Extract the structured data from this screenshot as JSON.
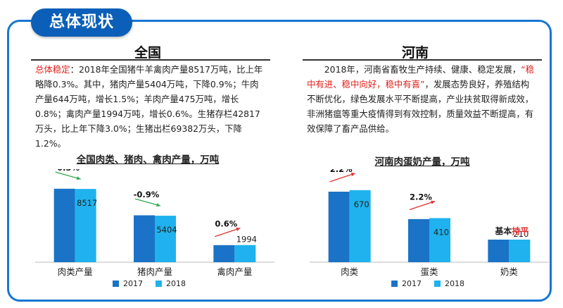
{
  "header": {
    "title": "总体现状"
  },
  "left": {
    "heading": "全国",
    "para_lead": "总体稳定",
    "para_rest": "：2018年全国猪牛羊禽肉产量8517万吨，比上年略降0.3%。其中，猪肉产量5404万吨，下降0.9%；牛肉产量644万吨，增长1.5%；羊肉产量475万吨，增长0.8%；禽肉产量1994万吨，增长0.6%。生猪存栏42817万头，比上年下降3.0%；生猪出栏69382万头，下降1.2%。"
  },
  "right": {
    "heading": "河南",
    "para_a": "2018年，河南省畜牧生产持续、健康、稳定发展，",
    "para_red": "“稳中有进、稳中向好，稳中有喜”",
    "para_b": "，发展态势良好，养殖结构不断优化，绿色发展水平不断提高，产业扶贫取得新成效，非洲猪瘟等重大疫情得到有效控制，质量效益不断提高，有效保障了畜产品供给。"
  },
  "colors": {
    "s2017": "#1a73c6",
    "s2018": "#1fb2ee",
    "arrow_green": "#2fa84f",
    "arrow_red": "#e23030",
    "frame": "#1677d2"
  },
  "chart_data": [
    {
      "type": "bar",
      "title": "全国肉类、猪肉、禽肉产量，万吨",
      "categories": [
        "肉类产量",
        "猪肉产量",
        "禽肉产量"
      ],
      "series": [
        {
          "name": "2017",
          "values": [
            8542,
            5452,
            1982
          ]
        },
        {
          "name": "2018",
          "values": [
            8517,
            5404,
            1994
          ]
        }
      ],
      "data_labels": [
        "8517",
        "5404",
        "1994"
      ],
      "change_labels": [
        "-0.3%",
        "-0.9%",
        "0.6%"
      ],
      "change_direction": [
        "down",
        "down",
        "up"
      ],
      "ylim": [
        0,
        10000
      ],
      "legend": "bottom"
    },
    {
      "type": "bar",
      "title": "河南肉蛋奶产量，万吨",
      "categories": [
        "肉类",
        "蛋类",
        "奶类"
      ],
      "series": [
        {
          "name": "2017",
          "values": [
            656,
            401,
            210
          ]
        },
        {
          "name": "2018",
          "values": [
            670,
            410,
            210
          ]
        }
      ],
      "data_labels": [
        "670",
        "410",
        "210"
      ],
      "change_labels": [
        "2.2%",
        "2.2%",
        "基本持平"
      ],
      "change_direction": [
        "up",
        "up",
        "flat"
      ],
      "ylim": [
        0,
        800
      ],
      "legend": "bottom"
    }
  ]
}
